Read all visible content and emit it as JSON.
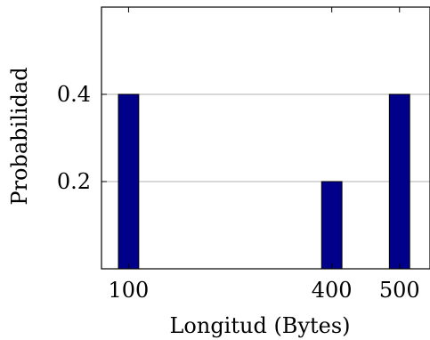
{
  "chart_data": {
    "type": "bar",
    "x": [
      100,
      400,
      500
    ],
    "values": [
      0.4,
      0.2,
      0.4
    ],
    "title": "",
    "xlabel": "Longitud (Bytes)",
    "ylabel": "Probabilidad",
    "xlim": [
      60,
      545
    ],
    "ylim": [
      0,
      0.6
    ],
    "x_ticks": [
      "100",
      "400",
      "500"
    ],
    "y_ticks": [
      "0.2",
      "0.4"
    ],
    "grid": "horizontal",
    "bar_color": "#00008b",
    "grid_color": "#b0b0b0"
  }
}
